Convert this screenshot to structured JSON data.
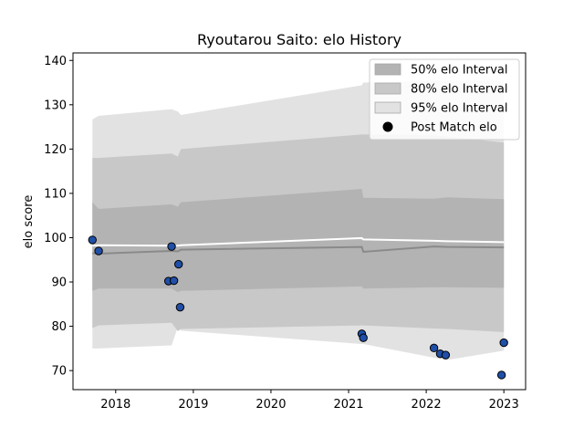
{
  "chart_data": {
    "type": "area",
    "title": "Ryoutarou Saito: elo History",
    "xlabel": "",
    "ylabel": "elo score",
    "xlim": [
      2017.45,
      2023.28
    ],
    "ylim": [
      65.7,
      141.7
    ],
    "x_ticks": [
      2018,
      2019,
      2020,
      2021,
      2022,
      2023
    ],
    "x_tick_labels": [
      "2018",
      "2019",
      "2020",
      "2021",
      "2022",
      "2023"
    ],
    "y_ticks": [
      70,
      80,
      90,
      100,
      110,
      120,
      130,
      140
    ],
    "y_tick_labels": [
      "70",
      "80",
      "90",
      "100",
      "110",
      "120",
      "130",
      "140"
    ],
    "grid": false,
    "legend_position": "top-right",
    "legend": [
      {
        "label": "50% elo Interval",
        "kind": "band",
        "color": "#b3b3b3"
      },
      {
        "label": "80% elo Interval",
        "kind": "band",
        "color": "#c8c8c8"
      },
      {
        "label": "95% elo Interval",
        "kind": "band",
        "color": "#e2e2e2"
      },
      {
        "label": "Post Match elo",
        "kind": "marker",
        "color": "#000000"
      }
    ],
    "bands": [
      {
        "label": "95% elo Interval",
        "color": "#e2e2e2",
        "x": [
          2017.7,
          2017.78,
          2018.72,
          2018.8,
          2018.84,
          2021.17,
          2021.19,
          2022.1,
          2022.27,
          2023.0
        ],
        "lower": [
          75.0,
          75.0,
          75.7,
          79.8,
          79.0,
          76.0,
          76.0,
          72.9,
          72.4,
          74.5
        ],
        "upper": [
          126.7,
          127.5,
          129.0,
          128.5,
          127.7,
          134.4,
          135.0,
          135.5,
          135.5,
          135.5
        ]
      },
      {
        "label": "80% elo Interval",
        "color": "#c8c8c8",
        "x": [
          2017.7,
          2017.78,
          2018.72,
          2018.8,
          2018.84,
          2021.17,
          2021.19,
          2022.1,
          2022.27,
          2023.0
        ],
        "lower": [
          79.6,
          80.2,
          80.8,
          78.9,
          79.4,
          80.2,
          80.2,
          79.5,
          79.4,
          78.7
        ],
        "upper": [
          118.0,
          118.0,
          119.0,
          118.3,
          120.0,
          123.3,
          123.3,
          123.1,
          122.8,
          121.5
        ]
      },
      {
        "label": "50% elo Interval",
        "color": "#b3b3b3",
        "x": [
          2017.7,
          2017.78,
          2018.72,
          2018.8,
          2018.84,
          2021.17,
          2021.19,
          2022.1,
          2022.27,
          2023.0
        ],
        "lower": [
          88.0,
          88.5,
          88.5,
          87.7,
          88.0,
          89.0,
          88.5,
          88.8,
          88.8,
          88.7
        ],
        "upper": [
          108.0,
          106.5,
          107.5,
          107.0,
          108.0,
          111.0,
          109.0,
          108.8,
          109.1,
          108.7
        ]
      }
    ],
    "lines": [
      {
        "color": "#ffffff",
        "x": [
          2017.7,
          2017.78,
          2018.72,
          2018.8,
          2018.84,
          2021.17,
          2021.19,
          2022.1,
          2022.27,
          2023.0
        ],
        "y": [
          98.2,
          98.3,
          98.2,
          98.2,
          98.3,
          99.9,
          99.6,
          99.3,
          99.2,
          99.0
        ]
      },
      {
        "color": "#8a8a8a",
        "x": [
          2017.7,
          2017.78,
          2018.72,
          2018.8,
          2018.84,
          2021.17,
          2021.19,
          2022.1,
          2022.27,
          2023.0
        ],
        "y": [
          96.5,
          96.4,
          97.0,
          96.9,
          97.3,
          97.9,
          96.8,
          98.0,
          97.9,
          97.8
        ]
      }
    ],
    "points": {
      "label": "Post Match elo",
      "color": "#1f4fa8",
      "edge_color": "#000000",
      "x": [
        2017.7,
        2017.78,
        2018.72,
        2018.68,
        2018.75,
        2018.81,
        2018.83,
        2021.17,
        2021.19,
        2022.1,
        2022.18,
        2022.25,
        2022.97,
        2023.0
      ],
      "y": [
        99.5,
        97.0,
        98.0,
        90.2,
        90.3,
        94.0,
        84.3,
        78.3,
        77.4,
        75.1,
        73.8,
        73.5,
        69.0,
        76.3
      ]
    }
  }
}
